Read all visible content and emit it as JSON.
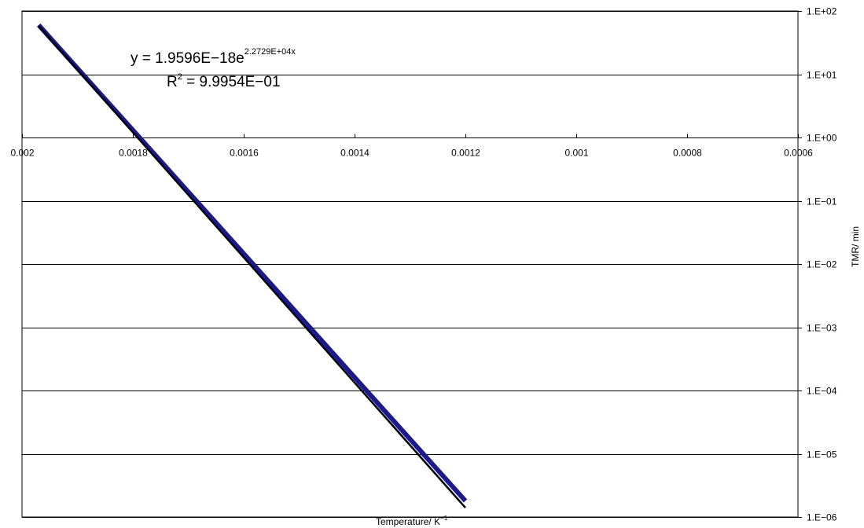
{
  "chart_data": {
    "type": "line",
    "xlabel": "Temperature/ K",
    "xlabel_sup": "−1",
    "ylabel": "TMR/ min",
    "x_reversed": true,
    "xlim": [
      0.0006,
      0.002
    ],
    "ylim": [
      1e-06,
      100
    ],
    "y_scale": "log",
    "grid": "horizontal",
    "x_tick_values": [
      0.002,
      0.0018,
      0.0016,
      0.0014,
      0.0012,
      0.001,
      0.0008,
      0.0006
    ],
    "x_tick_labels": [
      "0.002",
      "0.0018",
      "0.0016",
      "0.0014",
      "0.0012",
      "0.001",
      "0.0008",
      "0.0006"
    ],
    "y_tick_values": [
      100,
      10,
      1,
      0.1,
      0.01,
      0.001,
      0.0001,
      1e-05,
      1e-06
    ],
    "y_tick_labels": [
      "1.E+02",
      "1.E+01",
      "1.E+00",
      "1.E−01",
      "1.E−02",
      "1.E−03",
      "1.E−04",
      "1.E−05",
      "1.E−06"
    ],
    "series": [
      {
        "color": "#1a1a8c",
        "x": [
          0.00197,
          0.0012
        ],
        "y": [
          60,
          1.8e-06
        ]
      },
      {
        "color": "#000000",
        "x": [
          0.00197,
          0.0012
        ],
        "y": [
          58,
          1.4e-06
        ]
      }
    ],
    "equation": {
      "prefix": "y = 1.9596E−18e",
      "exponent": "2.2729E+04x",
      "r2_prefix": "R",
      "r2_sup": "2",
      "r2_value": " = 9.9954E−01"
    }
  }
}
